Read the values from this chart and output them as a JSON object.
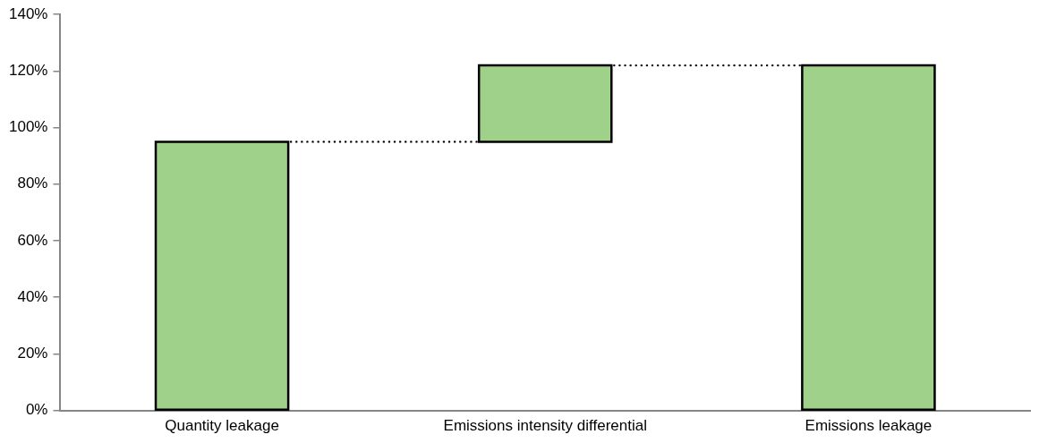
{
  "chart_data": {
    "type": "bar",
    "categories": [
      "Quantity leakage",
      "Emissions intensity differential",
      "Emissions leakage"
    ],
    "values": [
      95,
      27,
      122
    ],
    "base": [
      0,
      95,
      0
    ],
    "color": "#a0d18a",
    "ylim": [
      0,
      140
    ],
    "yticks": [
      {
        "value": 0,
        "label": "0%"
      },
      {
        "value": 20,
        "label": "20%"
      },
      {
        "value": 40,
        "label": "40%"
      },
      {
        "value": 60,
        "label": "60%"
      },
      {
        "value": 80,
        "label": "80%"
      },
      {
        "value": 100,
        "label": "100%"
      },
      {
        "value": 120,
        "label": "120%"
      },
      {
        "value": 140,
        "label": "140%"
      }
    ],
    "ref_lines": [
      {
        "axis": "y",
        "value": 95,
        "color": "#000000",
        "line_style": "dotted"
      },
      {
        "axis": "y",
        "value": 122,
        "color": "#000000",
        "line_style": "dotted"
      }
    ],
    "grid": false,
    "legend": false
  }
}
